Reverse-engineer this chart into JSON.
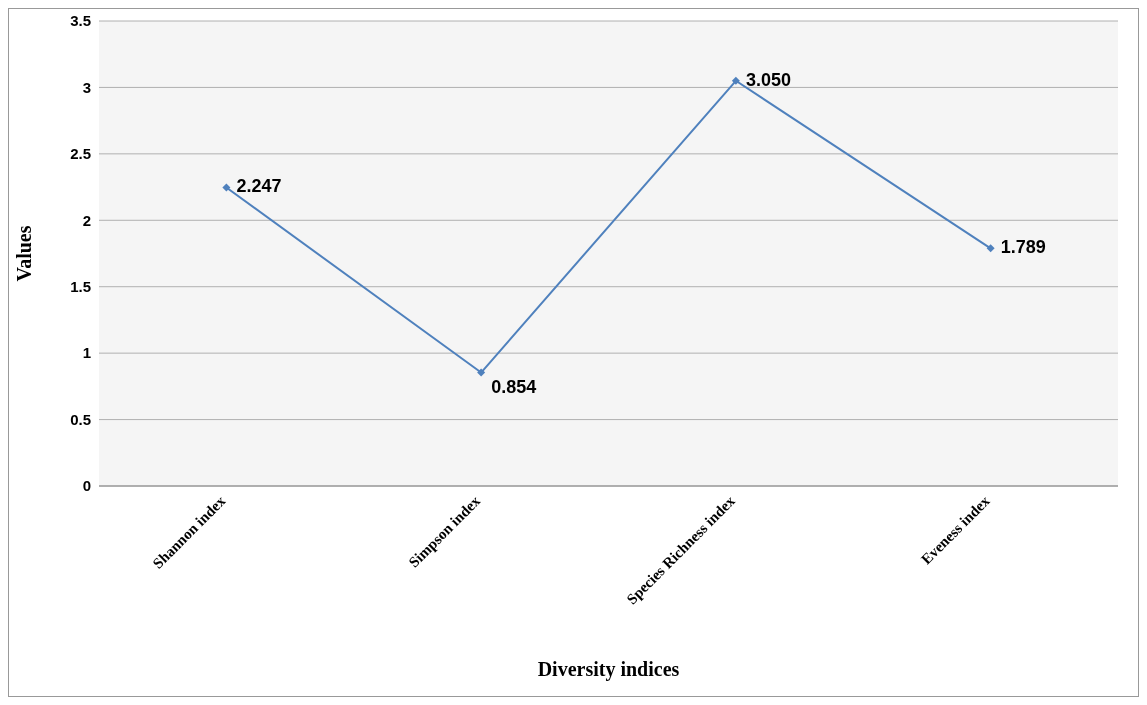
{
  "chart_data": {
    "type": "line",
    "xlabel": "Diversity indices",
    "ylabel": "Values",
    "categories": [
      "Shannon index",
      "Simpson index",
      "Species Richness index",
      "Eveness index"
    ],
    "series": [
      {
        "color": "#4f81bd",
        "values": [
          2.247,
          0.854,
          3.05,
          1.789
        ],
        "value_labels": [
          "2.247",
          "0.854",
          "3.050",
          "1.789"
        ]
      }
    ],
    "ylim": [
      0,
      3.5
    ],
    "yticks": [
      0,
      0.5,
      1,
      1.5,
      2,
      2.5,
      3,
      3.5
    ],
    "grid": "y",
    "legend": false,
    "marker": "diamond",
    "line_style": "solid"
  }
}
